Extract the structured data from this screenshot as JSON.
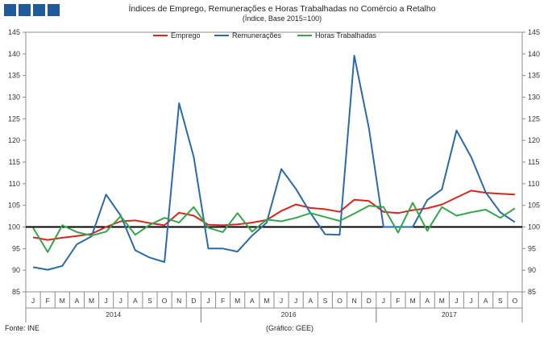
{
  "header": {
    "title": "Índices de Emprego, Remunerações e Horas Trabalhadas no Comércio a Retalho",
    "subtitle": "(Índice, Base 2015=100)"
  },
  "footer": {
    "source": "Fonte: INE",
    "credit": "(Gráfico: GEE)"
  },
  "chart_data": {
    "type": "line",
    "title": "Índices de Emprego, Remunerações e Horas Trabalhadas no Comércio a Retalho",
    "subtitle": "(Índice, Base 2015=100)",
    "ylim": [
      85,
      145
    ],
    "yticks": [
      85,
      90,
      95,
      100,
      105,
      110,
      115,
      120,
      125,
      130,
      135,
      140,
      145
    ],
    "grid": false,
    "legend_position": "top-center",
    "reference_line": 100,
    "x": [
      "J",
      "F",
      "M",
      "A",
      "M",
      "J",
      "J",
      "A",
      "S",
      "O",
      "N",
      "D",
      "J",
      "F",
      "M",
      "A",
      "M",
      "J",
      "J",
      "A",
      "S",
      "O",
      "N",
      "D",
      "J",
      "F",
      "M",
      "A",
      "M",
      "J",
      "J",
      "A",
      "S",
      "O"
    ],
    "years": [
      {
        "label": "2014",
        "start": 0,
        "end": 11
      },
      {
        "label": "2016",
        "start": 12,
        "end": 23
      },
      {
        "label": "2017",
        "start": 24,
        "end": 33
      }
    ],
    "series": [
      {
        "name": "Emprego",
        "color": "#d7261e",
        "values": [
          97.6,
          97.0,
          97.5,
          97.9,
          98.4,
          100.0,
          101.3,
          101.5,
          100.9,
          100.4,
          103.3,
          102.6,
          100.5,
          100.4,
          100.6,
          101.0,
          101.6,
          103.7,
          105.2,
          104.4,
          104.1,
          103.5,
          106.3,
          106.0,
          103.5,
          103.2,
          103.9,
          104.3,
          105.2,
          106.8,
          108.4,
          107.9,
          107.7,
          107.5
        ]
      },
      {
        "name": "Remunerações",
        "color": "#2b6aa8",
        "values": [
          90.7,
          90.1,
          91.0,
          96.0,
          97.8,
          107.5,
          102.6,
          94.6,
          92.9,
          91.9,
          128.6,
          116.2,
          95.0,
          95.0,
          94.3,
          98.0,
          101.0,
          113.4,
          108.8,
          103.2,
          98.3,
          98.2,
          139.6,
          122.8,
          100.0,
          100.0,
          100.0,
          106.2,
          108.7,
          122.3,
          116.2,
          108.0,
          103.4,
          101.1
        ]
      },
      {
        "name": "Horas Trabalhadas",
        "color": "#35a54b",
        "values": [
          99.8,
          94.2,
          100.4,
          98.8,
          98.0,
          98.9,
          102.5,
          98.2,
          100.5,
          102.1,
          101.0,
          104.6,
          99.8,
          98.8,
          103.2,
          98.9,
          101.7,
          101.3,
          102.1,
          103.2,
          102.3,
          101.4,
          103.1,
          104.9,
          104.6,
          98.7,
          105.6,
          99.1,
          104.6,
          102.6,
          103.4,
          104.0,
          102.1,
          104.3
        ]
      }
    ]
  }
}
